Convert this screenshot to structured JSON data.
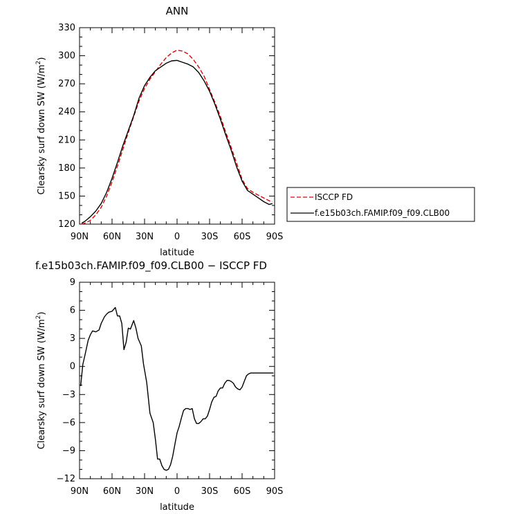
{
  "chart_data": [
    {
      "type": "line",
      "title": "ANN",
      "xlabel": "latitude",
      "ylabel": "Clearsky surf down SW (W/m",
      "ylabel_sup": "2",
      "ylabel_end": ")",
      "xlim": [
        -90,
        90
      ],
      "ylim": [
        120,
        330
      ],
      "x_ticks": [
        -90,
        -60,
        -30,
        0,
        30,
        60,
        90
      ],
      "x_tick_labels": [
        "90N",
        "60N",
        "30N",
        "0",
        "30S",
        "60S",
        "90S"
      ],
      "y_ticks": [
        120,
        150,
        180,
        210,
        240,
        270,
        300,
        330
      ],
      "y_tick_labels": [
        "120",
        "150",
        "180",
        "210",
        "240",
        "270",
        "300",
        "330"
      ],
      "legend": "right",
      "series": [
        {
          "name": "ISCCP FD",
          "color": "#e00000",
          "dashed": true,
          "x": [
            -88,
            -85,
            -80,
            -75,
            -70,
            -65,
            -60,
            -55,
            -50,
            -45,
            -40,
            -35,
            -30,
            -25,
            -20,
            -15,
            -10,
            -5,
            0,
            5,
            10,
            15,
            20,
            25,
            30,
            35,
            40,
            45,
            50,
            55,
            60,
            65,
            70,
            75,
            80,
            85,
            88
          ],
          "y": [
            120,
            121,
            124,
            130,
            138,
            150,
            165,
            182,
            200,
            218,
            235,
            252,
            265,
            275,
            283,
            291,
            298,
            303,
            306,
            305,
            302,
            296,
            288,
            278,
            264,
            250,
            235,
            218,
            202,
            185,
            168,
            158,
            154,
            151,
            148,
            145,
            144
          ]
        },
        {
          "name": "f.e15b03ch.FAMIP.f09_f09.CLB00",
          "color": "#000000",
          "dashed": false,
          "x": [
            -88,
            -85,
            -80,
            -75,
            -70,
            -65,
            -60,
            -55,
            -50,
            -45,
            -40,
            -35,
            -30,
            -25,
            -20,
            -15,
            -10,
            -5,
            0,
            5,
            10,
            15,
            20,
            25,
            30,
            35,
            40,
            45,
            50,
            55,
            60,
            65,
            70,
            75,
            80,
            85,
            88
          ],
          "y": [
            121,
            123,
            128,
            134,
            142,
            154,
            169,
            186,
            204,
            220,
            236,
            255,
            268,
            277,
            284,
            288,
            292,
            294.5,
            295,
            293,
            291,
            288,
            282,
            273,
            262,
            248,
            232,
            215,
            199,
            181,
            166,
            156,
            152,
            148,
            144,
            141,
            142
          ]
        }
      ]
    },
    {
      "type": "line",
      "title": "f.e15b03ch.FAMIP.f09_f09.CLB00 − ISCCP FD",
      "xlabel": "latitude",
      "ylabel": "Clearsky surf down SW (W/m",
      "ylabel_sup": "2",
      "ylabel_end": ")",
      "xlim": [
        -90,
        90
      ],
      "ylim": [
        -12,
        9
      ],
      "x_ticks": [
        -90,
        -60,
        -30,
        0,
        30,
        60,
        90
      ],
      "x_tick_labels": [
        "90N",
        "60N",
        "30N",
        "0",
        "30S",
        "60S",
        "90S"
      ],
      "y_ticks": [
        -12,
        -9,
        -6,
        -3,
        0,
        3,
        6,
        9
      ],
      "y_tick_labels": [
        "−12",
        "−9",
        "−6",
        "−3",
        "0",
        "3",
        "6",
        "9"
      ],
      "series": [
        {
          "color": "#000000",
          "dashed": false,
          "x": [
            -89,
            -87,
            -85,
            -82,
            -80,
            -78,
            -75,
            -72,
            -70,
            -67,
            -65,
            -63,
            -60,
            -57,
            -55,
            -53,
            -51,
            -49,
            -47,
            -45,
            -43,
            -40,
            -38,
            -36,
            -33,
            -31,
            -28,
            -25,
            -22,
            -20,
            -18,
            -16,
            -14,
            -12,
            -10,
            -8,
            -6,
            -4,
            -2,
            0,
            2,
            4,
            6,
            8,
            10,
            12,
            14,
            16,
            18,
            20,
            22,
            24,
            26,
            28,
            30,
            32,
            34,
            36,
            38,
            40,
            42,
            44,
            46,
            48,
            50,
            52,
            54,
            56,
            58,
            60,
            62,
            64,
            66,
            68,
            70,
            72,
            74,
            76,
            78,
            80,
            82,
            84,
            86,
            88,
            89
          ],
          "y": [
            -2.1,
            0.2,
            1.2,
            2.8,
            3.4,
            3.8,
            3.7,
            3.9,
            4.6,
            5.3,
            5.6,
            5.8,
            5.9,
            6.3,
            5.4,
            5.4,
            4.6,
            1.8,
            2.6,
            4.1,
            4.0,
            4.9,
            4.1,
            3.0,
            2.2,
            0.3,
            -1.7,
            -5.0,
            -6.0,
            -7.8,
            -9.9,
            -9.9,
            -10.6,
            -11.0,
            -11.1,
            -11.0,
            -10.5,
            -9.6,
            -8.3,
            -7.1,
            -6.4,
            -5.5,
            -4.7,
            -4.5,
            -4.5,
            -4.6,
            -4.5,
            -5.6,
            -6.1,
            -6.1,
            -5.9,
            -5.6,
            -5.6,
            -5.3,
            -4.6,
            -3.8,
            -3.3,
            -3.2,
            -2.6,
            -2.3,
            -2.3,
            -1.8,
            -1.5,
            -1.5,
            -1.6,
            -1.8,
            -2.2,
            -2.4,
            -2.5,
            -2.2,
            -1.6,
            -1.0,
            -0.8,
            -0.7,
            -0.7,
            -0.7,
            -0.7,
            -0.7,
            -0.7,
            -0.7,
            -0.7,
            -0.7,
            -0.7,
            -0.7,
            -0.7
          ]
        }
      ]
    }
  ]
}
